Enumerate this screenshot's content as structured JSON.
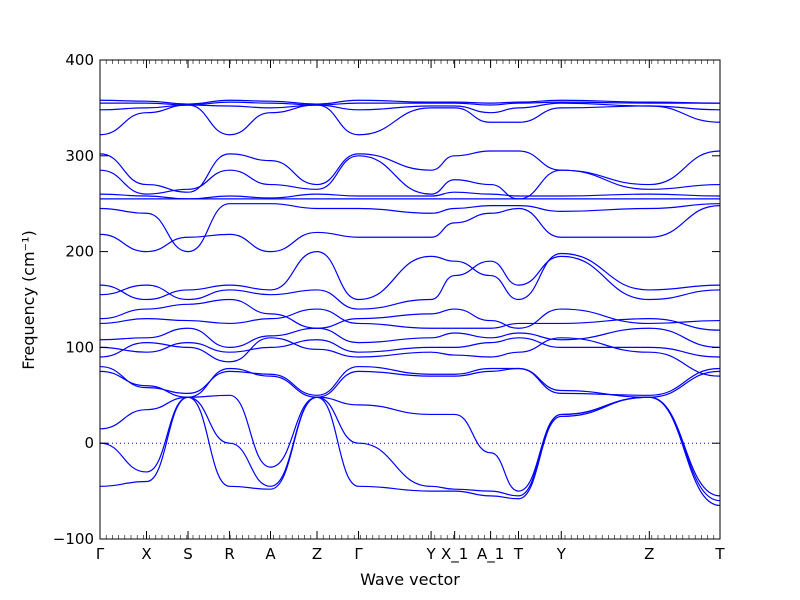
{
  "chart_data": {
    "type": "line",
    "title": "",
    "xlabel": "Wave vector",
    "ylabel": "Frequency (cm⁻¹)",
    "ylim": [
      -100,
      400
    ],
    "yticks": [
      -100,
      0,
      100,
      200,
      300,
      400
    ],
    "xlim": [
      0,
      1
    ],
    "xticks": [
      {
        "pos": 0.0,
        "label": "Γ"
      },
      {
        "pos": 0.075,
        "label": "X"
      },
      {
        "pos": 0.142,
        "label": "S"
      },
      {
        "pos": 0.209,
        "label": "R"
      },
      {
        "pos": 0.275,
        "label": "A"
      },
      {
        "pos": 0.35,
        "label": "Z"
      },
      {
        "pos": 0.417,
        "label": "Γ"
      },
      {
        "pos": 0.534,
        "label": "Y"
      },
      {
        "pos": 0.572,
        "label": "X_1"
      },
      {
        "pos": 0.63,
        "label": "A_1"
      },
      {
        "pos": 0.675,
        "label": "T"
      },
      {
        "pos": 0.744,
        "label": "Y"
      },
      {
        "pos": 0.886,
        "label": "Z"
      },
      {
        "pos": 1.0,
        "label": "T"
      }
    ],
    "zero_line": {
      "y": 0,
      "style": "dotted"
    },
    "line_color": "#0000ff",
    "grid": false,
    "legend": "none",
    "series": [
      {
        "x": [
          0,
          0.075,
          0.142,
          0.209,
          0.275,
          0.35,
          0.417,
          0.534,
          0.572,
          0.63,
          0.675,
          0.744,
          0.886,
          1.0
        ],
        "y": [
          -45,
          -40,
          48,
          -45,
          -48,
          48,
          -45,
          -50,
          -50,
          -55,
          -58,
          28,
          48,
          -65
        ]
      },
      {
        "x": [
          0,
          0.075,
          0.142,
          0.209,
          0.275,
          0.35,
          0.417,
          0.534,
          0.572,
          0.63,
          0.675,
          0.744,
          0.886,
          1.0
        ],
        "y": [
          0,
          -30,
          48,
          0,
          -45,
          48,
          0,
          -45,
          -48,
          -50,
          -55,
          30,
          48,
          -60
        ]
      },
      {
        "x": [
          0,
          0.075,
          0.142,
          0.209,
          0.275,
          0.35,
          0.417,
          0.534,
          0.572,
          0.63,
          0.675,
          0.744,
          0.886,
          1.0
        ],
        "y": [
          15,
          35,
          48,
          50,
          -25,
          48,
          40,
          30,
          30,
          -10,
          -50,
          30,
          48,
          -55
        ]
      },
      {
        "x": [
          0,
          0.075,
          0.142,
          0.209,
          0.275,
          0.35,
          0.417,
          0.534,
          0.572,
          0.63,
          0.675,
          0.744,
          0.886,
          1.0
        ],
        "y": [
          75,
          60,
          48,
          78,
          70,
          48,
          75,
          70,
          70,
          75,
          78,
          55,
          48,
          75
        ]
      },
      {
        "x": [
          0,
          0.075,
          0.142,
          0.209,
          0.275,
          0.35,
          0.417,
          0.534,
          0.572,
          0.63,
          0.675,
          0.744,
          0.886,
          1.0
        ],
        "y": [
          80,
          58,
          52,
          75,
          72,
          50,
          80,
          72,
          72,
          78,
          78,
          52,
          50,
          78
        ]
      },
      {
        "x": [
          0,
          0.075,
          0.142,
          0.209,
          0.275,
          0.35,
          0.417,
          0.534,
          0.572,
          0.63,
          0.675,
          0.744,
          0.886,
          1.0
        ],
        "y": [
          90,
          105,
          100,
          85,
          110,
          98,
          90,
          95,
          92,
          90,
          95,
          110,
          95,
          70
        ]
      },
      {
        "x": [
          0,
          0.075,
          0.142,
          0.209,
          0.275,
          0.35,
          0.417,
          0.534,
          0.572,
          0.63,
          0.675,
          0.744,
          0.886,
          1.0
        ],
        "y": [
          100,
          95,
          105,
          95,
          100,
          108,
          95,
          100,
          100,
          105,
          110,
          100,
          100,
          90
        ]
      },
      {
        "x": [
          0,
          0.075,
          0.142,
          0.209,
          0.275,
          0.35,
          0.417,
          0.534,
          0.572,
          0.63,
          0.675,
          0.744,
          0.886,
          1.0
        ],
        "y": [
          108,
          110,
          120,
          100,
          112,
          120,
          105,
          110,
          115,
          110,
          115,
          108,
          120,
          100
        ]
      },
      {
        "x": [
          0,
          0.075,
          0.142,
          0.209,
          0.275,
          0.35,
          0.417,
          0.534,
          0.572,
          0.63,
          0.675,
          0.744,
          0.886,
          1.0
        ],
        "y": [
          125,
          130,
          128,
          125,
          130,
          140,
          125,
          120,
          120,
          120,
          125,
          125,
          130,
          118
        ]
      },
      {
        "x": [
          0,
          0.075,
          0.142,
          0.209,
          0.275,
          0.35,
          0.417,
          0.534,
          0.572,
          0.63,
          0.675,
          0.744,
          0.886,
          1.0
        ],
        "y": [
          130,
          140,
          145,
          150,
          135,
          120,
          130,
          135,
          140,
          128,
          120,
          140,
          125,
          128
        ]
      },
      {
        "x": [
          0,
          0.075,
          0.142,
          0.209,
          0.275,
          0.35,
          0.417,
          0.534,
          0.572,
          0.63,
          0.675,
          0.744,
          0.886,
          1.0
        ],
        "y": [
          155,
          165,
          150,
          160,
          155,
          160,
          140,
          150,
          175,
          190,
          165,
          195,
          150,
          160
        ]
      },
      {
        "x": [
          0,
          0.075,
          0.142,
          0.209,
          0.275,
          0.35,
          0.417,
          0.534,
          0.572,
          0.63,
          0.675,
          0.744,
          0.886,
          1.0
        ],
        "y": [
          165,
          150,
          160,
          165,
          160,
          200,
          150,
          195,
          190,
          175,
          150,
          198,
          160,
          165
        ]
      },
      {
        "x": [
          0,
          0.075,
          0.142,
          0.209,
          0.275,
          0.35,
          0.417,
          0.534,
          0.572,
          0.63,
          0.675,
          0.744,
          0.886,
          1.0
        ],
        "y": [
          218,
          200,
          215,
          218,
          200,
          220,
          215,
          215,
          230,
          240,
          245,
          215,
          215,
          248
        ]
      },
      {
        "x": [
          0,
          0.075,
          0.142,
          0.209,
          0.275,
          0.35,
          0.417,
          0.534,
          0.572,
          0.63,
          0.675,
          0.744,
          0.886,
          1.0
        ],
        "y": [
          245,
          240,
          200,
          250,
          250,
          245,
          245,
          240,
          245,
          248,
          248,
          242,
          245,
          250
        ]
      },
      {
        "x": [
          0,
          0.075,
          0.142,
          0.209,
          0.275,
          0.35,
          0.417,
          0.534,
          0.572,
          0.63,
          0.675,
          0.744,
          0.886,
          1.0
        ],
        "y": [
          255,
          255,
          255,
          255,
          255,
          255,
          255,
          255,
          255,
          255,
          255,
          255,
          255,
          255
        ]
      },
      {
        "x": [
          0,
          0.075,
          0.142,
          0.209,
          0.275,
          0.35,
          0.417,
          0.534,
          0.572,
          0.63,
          0.675,
          0.744,
          0.886,
          1.0
        ],
        "y": [
          260,
          258,
          255,
          258,
          256,
          260,
          258,
          258,
          262,
          260,
          258,
          258,
          260,
          258
        ]
      },
      {
        "x": [
          0,
          0.075,
          0.142,
          0.209,
          0.275,
          0.35,
          0.417,
          0.534,
          0.572,
          0.63,
          0.675,
          0.744,
          0.886,
          1.0
        ],
        "y": [
          285,
          260,
          265,
          285,
          270,
          265,
          300,
          260,
          275,
          270,
          255,
          285,
          265,
          270
        ]
      },
      {
        "x": [
          0,
          0.075,
          0.142,
          0.209,
          0.275,
          0.35,
          0.417,
          0.534,
          0.572,
          0.63,
          0.675,
          0.744,
          0.886,
          1.0
        ],
        "y": [
          302,
          270,
          262,
          302,
          295,
          270,
          302,
          285,
          300,
          305,
          305,
          285,
          270,
          305
        ]
      },
      {
        "x": [
          0,
          0.075,
          0.142,
          0.209,
          0.275,
          0.35,
          0.417,
          0.534,
          0.572,
          0.63,
          0.675,
          0.744,
          0.886,
          1.0
        ],
        "y": [
          322,
          345,
          353,
          322,
          345,
          353,
          322,
          350,
          350,
          335,
          335,
          350,
          352,
          335
        ]
      },
      {
        "x": [
          0,
          0.075,
          0.142,
          0.209,
          0.275,
          0.35,
          0.417,
          0.534,
          0.572,
          0.63,
          0.675,
          0.744,
          0.886,
          1.0
        ],
        "y": [
          348,
          350,
          353,
          352,
          350,
          353,
          348,
          352,
          352,
          345,
          350,
          355,
          352,
          348
        ]
      },
      {
        "x": [
          0,
          0.075,
          0.142,
          0.209,
          0.275,
          0.35,
          0.417,
          0.534,
          0.572,
          0.63,
          0.675,
          0.744,
          0.886,
          1.0
        ],
        "y": [
          355,
          355,
          353,
          356,
          355,
          353,
          355,
          355,
          355,
          353,
          355,
          356,
          355,
          355
        ]
      },
      {
        "x": [
          0,
          0.075,
          0.142,
          0.209,
          0.275,
          0.35,
          0.417,
          0.534,
          0.572,
          0.63,
          0.675,
          0.744,
          0.886,
          1.0
        ],
        "y": [
          358,
          357,
          354,
          358,
          357,
          354,
          358,
          356,
          356,
          355,
          356,
          358,
          356,
          355
        ]
      }
    ]
  }
}
